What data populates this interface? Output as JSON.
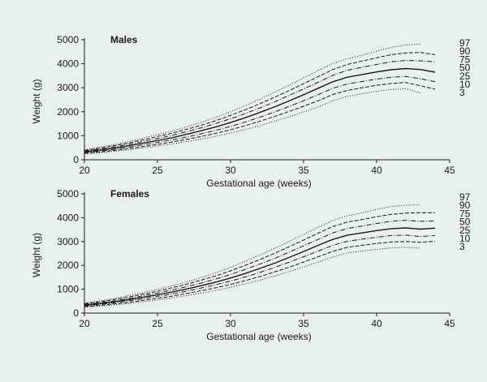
{
  "chart_data": [
    {
      "type": "line",
      "title": "Males",
      "xlabel": "Gestational age (weeks)",
      "ylabel": "Weight (g)",
      "xlim": [
        20,
        45
      ],
      "ylim": [
        0,
        5000
      ],
      "x_ticks": [
        20,
        25,
        30,
        35,
        40,
        45
      ],
      "y_ticks": [
        0,
        1000,
        2000,
        3000,
        4000,
        5000
      ],
      "x": [
        20,
        21,
        22,
        23,
        24,
        25,
        26,
        27,
        28,
        29,
        30,
        31,
        32,
        33,
        34,
        35,
        36,
        37,
        38,
        39,
        40,
        41,
        42,
        43,
        44
      ],
      "grid": false,
      "series": [
        {
          "name": "97",
          "style": "dotted",
          "values": [
            420,
            520,
            630,
            760,
            900,
            1050,
            1200,
            1370,
            1560,
            1770,
            2000,
            2250,
            2520,
            2810,
            3100,
            3410,
            3720,
            4010,
            4210,
            4350,
            4520,
            4680,
            4780,
            4820,
            null
          ]
        },
        {
          "name": "90",
          "style": "dashed",
          "values": [
            390,
            480,
            580,
            700,
            830,
            970,
            1110,
            1270,
            1440,
            1630,
            1850,
            2080,
            2330,
            2600,
            2880,
            3170,
            3460,
            3760,
            3970,
            4110,
            4250,
            4380,
            4450,
            4470,
            4380
          ]
        },
        {
          "name": "75",
          "style": "dashdot",
          "values": [
            360,
            440,
            530,
            640,
            760,
            890,
            1020,
            1170,
            1330,
            1510,
            1710,
            1920,
            2160,
            2410,
            2680,
            2950,
            3230,
            3520,
            3730,
            3850,
            3970,
            4080,
            4140,
            4120,
            4080
          ]
        },
        {
          "name": "50",
          "style": "solid",
          "values": [
            330,
            400,
            480,
            580,
            690,
            800,
            920,
            1060,
            1210,
            1370,
            1550,
            1750,
            1970,
            2200,
            2450,
            2710,
            2980,
            3250,
            3440,
            3550,
            3660,
            3750,
            3800,
            3760,
            3650
          ]
        },
        {
          "name": "25",
          "style": "dashdot",
          "values": [
            300,
            360,
            430,
            520,
            620,
            720,
            830,
            950,
            1080,
            1230,
            1390,
            1570,
            1770,
            1990,
            2220,
            2460,
            2710,
            2980,
            3160,
            3260,
            3360,
            3440,
            3470,
            3380,
            3250
          ]
        },
        {
          "name": "10",
          "style": "dashed",
          "values": [
            270,
            320,
            390,
            460,
            550,
            640,
            740,
            850,
            970,
            1100,
            1250,
            1420,
            1600,
            1800,
            2010,
            2230,
            2460,
            2720,
            2890,
            3000,
            3100,
            3180,
            3220,
            3080,
            2940
          ]
        },
        {
          "name": "3",
          "style": "dotted",
          "values": [
            240,
            290,
            350,
            410,
            490,
            570,
            660,
            760,
            860,
            980,
            1110,
            1260,
            1420,
            1600,
            1790,
            1990,
            2200,
            2460,
            2640,
            2750,
            2850,
            2930,
            2960,
            2780,
            null
          ]
        }
      ]
    },
    {
      "type": "line",
      "title": "Females",
      "xlabel": "Gestational age (weeks)",
      "ylabel": "Weight (g)",
      "xlim": [
        20,
        45
      ],
      "ylim": [
        0,
        5000
      ],
      "x_ticks": [
        20,
        25,
        30,
        35,
        40,
        45
      ],
      "y_ticks": [
        0,
        1000,
        2000,
        3000,
        4000,
        5000
      ],
      "x": [
        20,
        21,
        22,
        23,
        24,
        25,
        26,
        27,
        28,
        29,
        30,
        31,
        32,
        33,
        34,
        35,
        36,
        37,
        38,
        39,
        40,
        41,
        42,
        43,
        44
      ],
      "grid": false,
      "series": [
        {
          "name": "97",
          "style": "dotted",
          "values": [
            420,
            510,
            610,
            730,
            860,
            1000,
            1150,
            1310,
            1490,
            1690,
            1920,
            2170,
            2430,
            2710,
            3000,
            3300,
            3600,
            3880,
            4080,
            4200,
            4350,
            4470,
            4520,
            4540,
            null
          ]
        },
        {
          "name": "90",
          "style": "dashed",
          "values": [
            390,
            470,
            560,
            670,
            790,
            920,
            1060,
            1210,
            1380,
            1560,
            1770,
            2000,
            2240,
            2500,
            2780,
            3060,
            3350,
            3630,
            3820,
            3920,
            4040,
            4140,
            4190,
            4210,
            4210
          ]
        },
        {
          "name": "75",
          "style": "dashdot",
          "values": [
            360,
            430,
            510,
            610,
            720,
            840,
            970,
            1110,
            1260,
            1430,
            1620,
            1830,
            2050,
            2290,
            2550,
            2820,
            3090,
            3360,
            3550,
            3650,
            3760,
            3850,
            3890,
            3850,
            3860
          ]
        },
        {
          "name": "50",
          "style": "solid",
          "values": [
            330,
            390,
            470,
            560,
            660,
            770,
            880,
            1010,
            1150,
            1300,
            1470,
            1660,
            1870,
            2090,
            2330,
            2580,
            2840,
            3090,
            3270,
            3360,
            3460,
            3540,
            3570,
            3520,
            3560
          ]
        },
        {
          "name": "25",
          "style": "dashdot",
          "values": [
            300,
            360,
            430,
            510,
            600,
            700,
            800,
            920,
            1050,
            1190,
            1340,
            1510,
            1700,
            1910,
            2130,
            2360,
            2600,
            2840,
            3010,
            3100,
            3180,
            3250,
            3270,
            3210,
            3250
          ]
        },
        {
          "name": "10",
          "style": "dashed",
          "values": [
            270,
            320,
            380,
            450,
            530,
            620,
            710,
            820,
            940,
            1060,
            1200,
            1360,
            1530,
            1720,
            1920,
            2140,
            2360,
            2590,
            2760,
            2840,
            2920,
            2980,
            3000,
            2970,
            3010
          ]
        },
        {
          "name": "3",
          "style": "dotted",
          "values": [
            240,
            290,
            340,
            400,
            470,
            550,
            640,
            730,
            840,
            950,
            1080,
            1220,
            1380,
            1550,
            1740,
            1930,
            2140,
            2350,
            2520,
            2600,
            2670,
            2730,
            2760,
            2720,
            null
          ]
        }
      ]
    }
  ]
}
